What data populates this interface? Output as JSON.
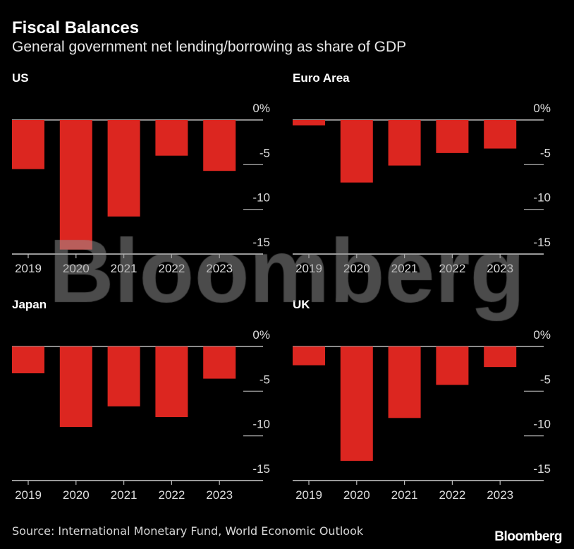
{
  "chart_data": [
    {
      "type": "bar",
      "title": "US",
      "categories": [
        "2019",
        "2020",
        "2021",
        "2022",
        "2023"
      ],
      "values": [
        -5.5,
        -14.5,
        -10.8,
        -4.0,
        -5.7
      ],
      "ylim": [
        -15,
        0
      ],
      "yticks": [
        "0%",
        "-5",
        "-10",
        "-15"
      ],
      "color": "#dc2620"
    },
    {
      "type": "bar",
      "title": "Euro Area",
      "categories": [
        "2019",
        "2020",
        "2021",
        "2022",
        "2023"
      ],
      "values": [
        -0.6,
        -7.0,
        -5.1,
        -3.7,
        -3.2
      ],
      "ylim": [
        -15,
        0
      ],
      "yticks": [
        "0%",
        "-5",
        "-10",
        "-15"
      ],
      "color": "#dc2620"
    },
    {
      "type": "bar",
      "title": "Japan",
      "categories": [
        "2019",
        "2020",
        "2021",
        "2022",
        "2023"
      ],
      "values": [
        -3.0,
        -9.0,
        -6.7,
        -7.9,
        -3.6
      ],
      "ylim": [
        -15,
        0
      ],
      "yticks": [
        "0%",
        "-5",
        "-10",
        "-15"
      ],
      "color": "#dc2620"
    },
    {
      "type": "bar",
      "title": "UK",
      "categories": [
        "2019",
        "2020",
        "2021",
        "2022",
        "2023"
      ],
      "values": [
        -2.1,
        -12.8,
        -8.0,
        -4.3,
        -2.3
      ],
      "ylim": [
        -15,
        0
      ],
      "yticks": [
        "0%",
        "-5",
        "-10",
        "-15"
      ],
      "color": "#dc2620"
    }
  ],
  "header": {
    "title": "Fiscal Balances",
    "subtitle": "General government net lending/borrowing as share of GDP"
  },
  "footer": {
    "source": "Source: International Monetary Fund, World Economic Outlook",
    "logo": "Bloomberg"
  },
  "watermark": "Bloomberg"
}
